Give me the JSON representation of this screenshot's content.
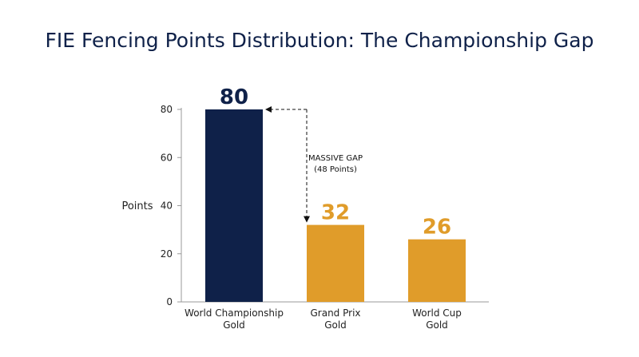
{
  "chart_data": {
    "type": "bar",
    "title": "FIE Fencing Points Distribution: The Championship Gap",
    "xlabel": "",
    "ylabel": "Points",
    "ylim": [
      0,
      80
    ],
    "yticks": [
      0,
      20,
      40,
      60,
      80
    ],
    "categories": [
      [
        "World Championship",
        "Gold"
      ],
      [
        "Grand Prix",
        "Gold"
      ],
      [
        "World Cup",
        "Gold"
      ]
    ],
    "values": [
      80,
      32,
      26
    ],
    "value_labels": [
      "80",
      "32",
      "26"
    ],
    "colors": [
      "#0f2149",
      "#e09c2a",
      "#e09c2a"
    ],
    "annotation": {
      "lines": [
        "MASSIVE GAP",
        "(48 Points)"
      ]
    },
    "grid": false
  }
}
